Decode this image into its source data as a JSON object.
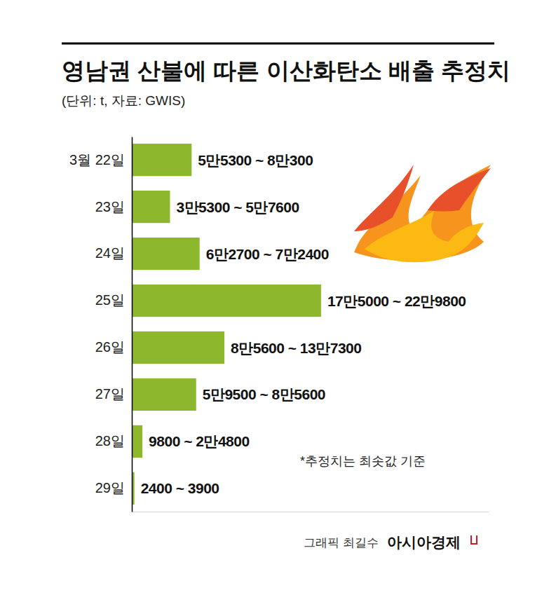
{
  "chart_data": {
    "type": "bar",
    "orientation": "horizontal",
    "title": "영남권 산불에 따른 이산화탄소 배출 추정치",
    "subtitle": "(단위: t, 자료: GWIS)",
    "categories": [
      "3월 22일",
      "23일",
      "24일",
      "25일",
      "26일",
      "27일",
      "28일",
      "29일"
    ],
    "values": [
      55300,
      35300,
      62700,
      175000,
      85600,
      59500,
      9800,
      2400
    ],
    "value_labels": [
      "5만5300 ~ 8만300",
      "3만5300 ~ 5만7600",
      "6만2700 ~ 7만2400",
      "17만5000 ~ 22만9800",
      "8만5600 ~ 13만7300",
      "5만9500 ~ 8만5600",
      "9800 ~ 2만4800",
      "2400 ~ 3900"
    ],
    "data_labels": true,
    "color": "#8db72d",
    "xlim": [
      0,
      330000
    ],
    "tick_labels": "y",
    "grid": false,
    "annotations": [
      "*추정치는 최솟값 기준"
    ],
    "credit": "그래픽 최길수",
    "source": "아시아경제"
  }
}
